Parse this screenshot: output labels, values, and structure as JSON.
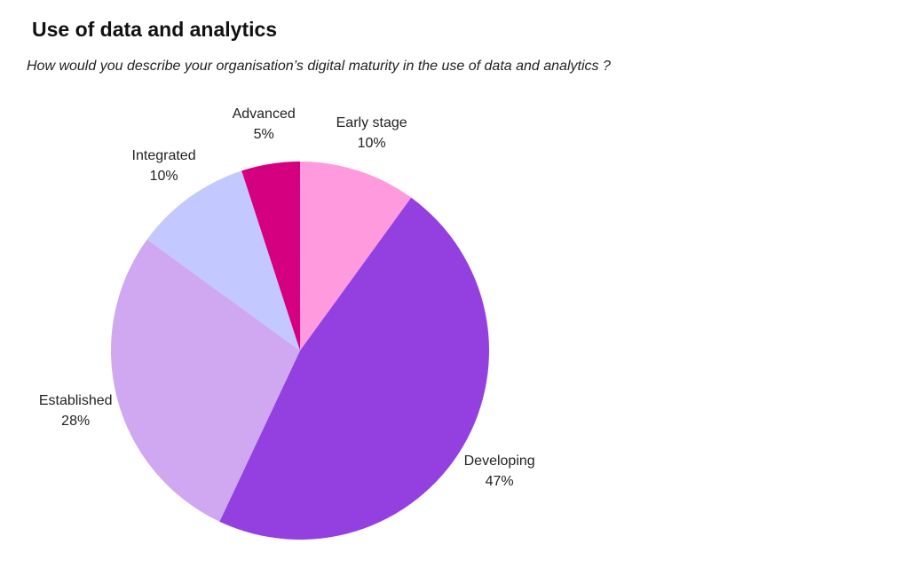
{
  "chart_data": {
    "type": "pie",
    "title": "Use of data and analytics",
    "subtitle": "How would you describe your organisation’s digital maturity in the use of data and analytics ?",
    "slices": [
      {
        "label": "Early stage",
        "value": 10,
        "value_label": "10%",
        "color": "#ff9ade"
      },
      {
        "label": "Developing",
        "value": 47,
        "value_label": "47%",
        "color": "#9440e0"
      },
      {
        "label": "Established",
        "value": 28,
        "value_label": "28%",
        "color": "#cfa8f1"
      },
      {
        "label": "Integrated",
        "value": 10,
        "value_label": "10%",
        "color": "#c3c9ff"
      },
      {
        "label": "Advanced",
        "value": 5,
        "value_label": "5%",
        "color": "#d5007f"
      }
    ],
    "legend": "none"
  }
}
